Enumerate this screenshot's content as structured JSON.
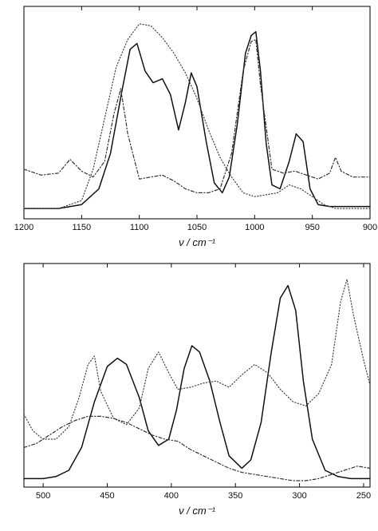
{
  "chart_data": [
    {
      "type": "line",
      "xlabel": "ν / cm⁻¹",
      "xlim": [
        1200,
        900
      ],
      "x_ticks": [
        1200,
        1150,
        1100,
        1050,
        1000,
        950,
        900
      ],
      "y_ticks": false,
      "grid": false,
      "series": [
        {
          "style": "solid",
          "color": "#111111",
          "x": [
            1200,
            1170,
            1150,
            1135,
            1125,
            1115,
            1108,
            1102,
            1095,
            1088,
            1080,
            1073,
            1066,
            1060,
            1055,
            1050,
            1042,
            1035,
            1028,
            1022,
            1015,
            1008,
            1003,
            999,
            995,
            990,
            985,
            978,
            970,
            964,
            958,
            952,
            945,
            935,
            920,
            900
          ],
          "y": [
            0.02,
            0.02,
            0.04,
            0.12,
            0.3,
            0.62,
            0.83,
            0.86,
            0.72,
            0.66,
            0.68,
            0.6,
            0.42,
            0.56,
            0.71,
            0.64,
            0.36,
            0.15,
            0.1,
            0.18,
            0.45,
            0.81,
            0.9,
            0.92,
            0.72,
            0.35,
            0.14,
            0.12,
            0.26,
            0.4,
            0.36,
            0.12,
            0.04,
            0.03,
            0.03,
            0.03
          ]
        },
        {
          "style": "dotted",
          "color": "#444444",
          "x": [
            1200,
            1170,
            1150,
            1140,
            1130,
            1120,
            1110,
            1100,
            1090,
            1080,
            1070,
            1060,
            1050,
            1040,
            1030,
            1020,
            1010,
            1000,
            990,
            980,
            970,
            960,
            950,
            940,
            930,
            920,
            910,
            900
          ],
          "y": [
            0.02,
            0.02,
            0.06,
            0.22,
            0.48,
            0.74,
            0.88,
            0.96,
            0.95,
            0.89,
            0.81,
            0.71,
            0.58,
            0.42,
            0.28,
            0.18,
            0.1,
            0.08,
            0.09,
            0.1,
            0.14,
            0.12,
            0.08,
            0.04,
            0.02,
            0.02,
            0.02,
            0.02
          ]
        },
        {
          "style": "dash-dot",
          "color": "#333333",
          "x": [
            1200,
            1185,
            1170,
            1160,
            1150,
            1140,
            1130,
            1122,
            1116,
            1110,
            1100,
            1090,
            1080,
            1070,
            1060,
            1050,
            1040,
            1030,
            1020,
            1010,
            1003,
            999,
            995,
            985,
            975,
            965,
            955,
            945,
            935,
            930,
            925,
            915,
            900
          ],
          "y": [
            0.22,
            0.19,
            0.2,
            0.27,
            0.21,
            0.18,
            0.26,
            0.5,
            0.63,
            0.4,
            0.17,
            0.18,
            0.19,
            0.16,
            0.12,
            0.1,
            0.1,
            0.12,
            0.3,
            0.72,
            0.87,
            0.88,
            0.65,
            0.22,
            0.2,
            0.21,
            0.19,
            0.17,
            0.2,
            0.28,
            0.21,
            0.18,
            0.18
          ]
        }
      ]
    },
    {
      "type": "line",
      "xlabel": "ν / cm⁻¹",
      "xlim": [
        515,
        245
      ],
      "x_ticks": [
        500,
        450,
        400,
        350,
        300,
        250
      ],
      "y_ticks": false,
      "grid": false,
      "series": [
        {
          "style": "solid",
          "color": "#111111",
          "x": [
            515,
            500,
            490,
            480,
            470,
            460,
            450,
            442,
            435,
            425,
            418,
            410,
            402,
            396,
            390,
            384,
            378,
            370,
            362,
            355,
            345,
            338,
            330,
            322,
            315,
            309,
            303,
            297,
            290,
            280,
            270,
            260,
            250,
            245
          ],
          "y": [
            0.01,
            0.01,
            0.02,
            0.05,
            0.16,
            0.38,
            0.55,
            0.59,
            0.56,
            0.4,
            0.24,
            0.17,
            0.2,
            0.34,
            0.54,
            0.65,
            0.62,
            0.48,
            0.28,
            0.12,
            0.06,
            0.1,
            0.28,
            0.62,
            0.88,
            0.94,
            0.82,
            0.48,
            0.2,
            0.05,
            0.02,
            0.01,
            0.01,
            0.01
          ]
        },
        {
          "style": "dotted",
          "color": "#444444",
          "x": [
            515,
            508,
            500,
            490,
            480,
            472,
            465,
            460,
            455,
            445,
            435,
            425,
            418,
            410,
            402,
            395,
            385,
            375,
            365,
            355,
            345,
            335,
            325,
            315,
            305,
            295,
            285,
            275,
            268,
            263,
            258,
            250,
            245
          ],
          "y": [
            0.32,
            0.24,
            0.2,
            0.2,
            0.26,
            0.4,
            0.56,
            0.6,
            0.43,
            0.3,
            0.27,
            0.35,
            0.54,
            0.62,
            0.52,
            0.44,
            0.45,
            0.47,
            0.48,
            0.45,
            0.51,
            0.56,
            0.52,
            0.44,
            0.38,
            0.36,
            0.42,
            0.56,
            0.86,
            0.97,
            0.8,
            0.58,
            0.46
          ]
        },
        {
          "style": "dash-dot",
          "color": "#333333",
          "x": [
            515,
            505,
            495,
            485,
            475,
            465,
            455,
            445,
            435,
            425,
            415,
            405,
            395,
            385,
            375,
            365,
            355,
            345,
            335,
            325,
            315,
            305,
            295,
            285,
            275,
            265,
            255,
            245
          ],
          "y": [
            0.16,
            0.18,
            0.22,
            0.26,
            0.29,
            0.31,
            0.31,
            0.3,
            0.28,
            0.25,
            0.22,
            0.2,
            0.19,
            0.15,
            0.12,
            0.09,
            0.06,
            0.04,
            0.03,
            0.02,
            0.01,
            0.0,
            0.0,
            0.01,
            0.03,
            0.05,
            0.07,
            0.06
          ]
        }
      ]
    }
  ]
}
